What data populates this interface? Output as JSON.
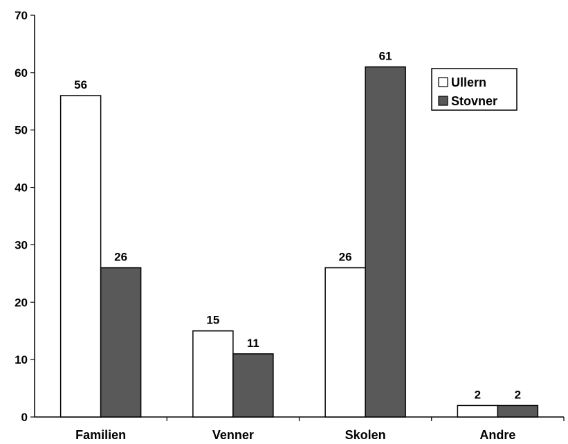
{
  "chart_data": {
    "type": "bar",
    "categories": [
      "Familien",
      "Venner",
      "Skolen",
      "Andre"
    ],
    "series": [
      {
        "name": "Ullern",
        "values": [
          56,
          15,
          26,
          2
        ],
        "color": "#ffffff"
      },
      {
        "name": "Stovner",
        "values": [
          26,
          11,
          61,
          2
        ],
        "color": "#595959"
      }
    ],
    "y_ticks": [
      "0",
      "10",
      "20",
      "30",
      "40",
      "50",
      "60",
      "70"
    ],
    "ylim": [
      0,
      70
    ],
    "grid": false,
    "legend_position": "top-right",
    "value_labels": true
  }
}
